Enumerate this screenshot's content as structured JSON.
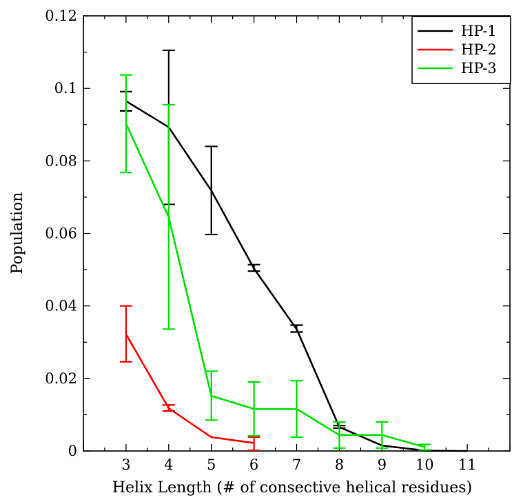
{
  "chart_data": {
    "type": "line",
    "title": "",
    "xlabel": "Helix Length (# of consective helical residues)",
    "ylabel": "Population",
    "xlim": [
      2,
      12
    ],
    "ylim": [
      0,
      0.12
    ],
    "x_ticks": [
      3,
      4,
      5,
      6,
      7,
      8,
      9,
      10,
      11
    ],
    "y_ticks": [
      0,
      0.02,
      0.04,
      0.06,
      0.08,
      0.1,
      0.12
    ],
    "y_tick_labels": [
      "0",
      "0.02",
      "0.04",
      "0.06",
      "0.08",
      "0.1",
      "0.12"
    ],
    "grid": false,
    "legend_position": "top-right",
    "series": [
      {
        "name": "HP-1",
        "color": "#000000",
        "x": [
          3,
          4,
          5,
          6,
          7,
          8,
          9,
          10,
          11
        ],
        "y": [
          0.0965,
          0.0893,
          0.0718,
          0.0503,
          0.0336,
          0.0066,
          0.0015,
          0.0001,
          0.0
        ],
        "err_low": [
          0.0938,
          0.068,
          0.0597,
          0.0496,
          0.0328,
          0.0063,
          null,
          null,
          null
        ],
        "err_high": [
          0.0991,
          0.1105,
          0.084,
          0.0514,
          0.0347,
          0.007,
          null,
          null,
          null
        ]
      },
      {
        "name": "HP-2",
        "color": "#ff0000",
        "x": [
          3,
          4,
          5,
          6
        ],
        "y": [
          0.0322,
          0.0118,
          0.0038,
          0.0022
        ],
        "err_low": [
          0.0246,
          0.011,
          null,
          0.0002
        ],
        "err_high": [
          0.04,
          0.0127,
          null,
          0.0038
        ]
      },
      {
        "name": "HP-3",
        "color": "#00e000",
        "x": [
          3,
          4,
          5,
          6,
          7,
          8,
          9,
          10
        ],
        "y": [
          0.0903,
          0.0645,
          0.0152,
          0.0116,
          0.0116,
          0.0044,
          0.0044,
          0.0011
        ],
        "err_low": [
          0.0768,
          0.0336,
          0.0085,
          0.0042,
          0.0038,
          0.0008,
          0.0008,
          0.0003
        ],
        "err_high": [
          0.1037,
          0.0955,
          0.022,
          0.019,
          0.0194,
          0.008,
          0.008,
          0.0018
        ]
      }
    ]
  }
}
